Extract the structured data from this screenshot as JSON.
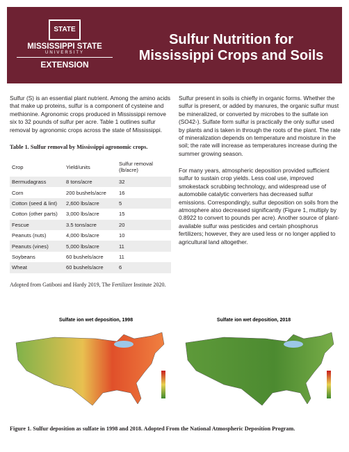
{
  "header": {
    "logo_top": "STATE",
    "logo_name": "MISSISSIPPI STATE",
    "logo_sub": "UNIVERSITY",
    "logo_unit": "EXTENSION",
    "title_lines": [
      "Sulfur Nutrition for",
      "Mississippi Crops and Soils"
    ]
  },
  "left_column": {
    "intro": "Sulfur (S) is an essential plant nutrient. Among the amino acids that make up proteins, sulfur is a component of cysteine and methionine. Agronomic crops produced in Mississippi remove six to 32 pounds of sulfur per acre. Table 1 outlines sulfur removal by agronomic crops across the state of Mississippi.",
    "table": {
      "caption": "Table 1. Sulfur removal by Mississippi agronomic crops.",
      "headers": [
        "Crop",
        "Yield/units",
        "Sulfur removal (lb/acre)"
      ],
      "rows": [
        [
          "Bermudagrass",
          "8 tons/acre",
          "32"
        ],
        [
          "Corn",
          "200 bushels/acre",
          "16"
        ],
        [
          "Cotton (seed & lint)",
          "2,600 lbs/acre",
          "5"
        ],
        [
          "Cotton (other parts)",
          "3,000 lbs/acre",
          "15"
        ],
        [
          "Fescue",
          "3.5 tons/acre",
          "20"
        ],
        [
          "Peanuts (nuts)",
          "4,000 lbs/acre",
          "10"
        ],
        [
          "Peanuts (vines)",
          "5,000 lbs/acre",
          "11"
        ],
        [
          "Soybeans",
          "60 bushels/acre",
          "11"
        ],
        [
          "Wheat",
          "60 bushels/acre",
          "6"
        ]
      ]
    },
    "source": "Adopted from Gatiboni and Hardy 2019, The Fertilizer Institute 2020."
  },
  "right_column": {
    "paragraphs": [
      "Sulfur present in soils is chiefly in organic forms. Whether the sulfur is present, or added by manures, the organic sulfur must be mineralized, or converted by microbes to the sulfate ion (SO42-). Sulfate form sulfur is practically the only sulfur used by plants and is taken in through the roots of the plant. The rate of mineralization depends on temperature and moisture in the soil; the rate will increase as temperatures increase during the summer growing season.",
      "For many years, atmospheric deposition provided sufficient sulfur to sustain crop yields. Less coal use, improved smokestack scrubbing technology, and widespread use of automobile catalytic converters has decreased sulfur emissions. Correspondingly, sulfur deposition on soils from the atmosphere also decreased significantly (Figure 1, multiply by 0.8922 to convert to pounds per acre). Another source of plant-available sulfur was pesticides and certain phosphorus fertilizers; however, they are used less or no longer applied to agricultural land altogether."
    ]
  },
  "figure": {
    "map_titles": [
      "Sulfate ion wet deposition, 1998",
      "Sulfate ion wet deposition, 2018"
    ],
    "caption": "Figure 1. Sulfur deposition as sulfate in 1998 and 2018. Adopted From the National Atmospheric Deposition Program."
  }
}
